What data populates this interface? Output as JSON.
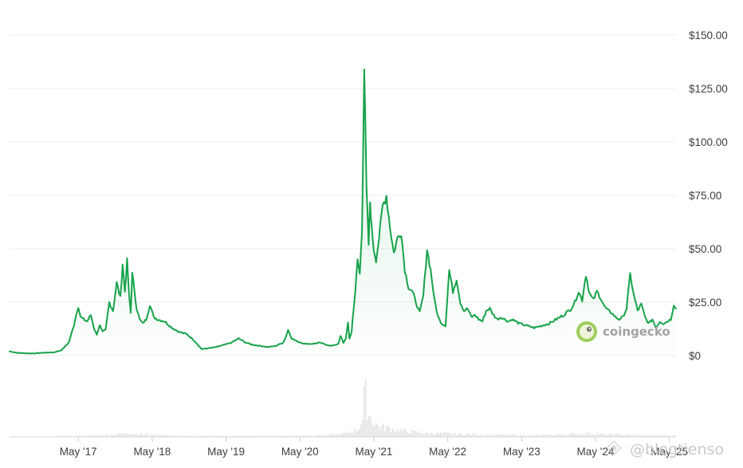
{
  "chart_data": {
    "type": "area",
    "title": "",
    "xlabel": "",
    "ylabel": "",
    "ylim": [
      0,
      150
    ],
    "grid": true,
    "line_color": "#16a34a",
    "y_ticks": [
      "$0",
      "$25.00",
      "$50.00",
      "$75.00",
      "$100.00",
      "$125.00",
      "$150.00"
    ],
    "y_tick_values": [
      0,
      25,
      50,
      75,
      100,
      125,
      150
    ],
    "x_ticks": [
      "May '17",
      "May '18",
      "May '19",
      "May '20",
      "May '21",
      "May '22",
      "May '23",
      "May '24",
      "May '25"
    ],
    "x_tick_values": [
      2017.33,
      2018.33,
      2019.33,
      2020.33,
      2021.33,
      2022.33,
      2023.33,
      2024.33,
      2025.33
    ],
    "xlim": [
      2016.4,
      2025.42
    ],
    "series": [
      {
        "name": "",
        "x": [
          2016.4,
          2016.5,
          2016.6,
          2016.7,
          2016.8,
          2016.9,
          2017.0,
          2017.1,
          2017.2,
          2017.27,
          2017.3,
          2017.33,
          2017.36,
          2017.4,
          2017.45,
          2017.5,
          2017.55,
          2017.58,
          2017.62,
          2017.66,
          2017.7,
          2017.75,
          2017.8,
          2017.85,
          2017.9,
          2017.93,
          2017.96,
          2017.99,
          2018.02,
          2018.04,
          2018.06,
          2018.09,
          2018.12,
          2018.16,
          2018.2,
          2018.25,
          2018.3,
          2018.35,
          2018.4,
          2018.5,
          2018.6,
          2018.7,
          2018.8,
          2018.9,
          2019.0,
          2019.1,
          2019.2,
          2019.3,
          2019.4,
          2019.5,
          2019.6,
          2019.7,
          2019.8,
          2019.9,
          2020.0,
          2020.1,
          2020.13,
          2020.17,
          2020.22,
          2020.3,
          2020.4,
          2020.5,
          2020.6,
          2020.7,
          2020.75,
          2020.8,
          2020.85,
          2020.88,
          2020.92,
          2020.95,
          2020.98,
          2021.0,
          2021.03,
          2021.05,
          2021.08,
          2021.11,
          2021.14,
          2021.17,
          2021.2,
          2021.23,
          2021.26,
          2021.28,
          2021.3,
          2021.33,
          2021.36,
          2021.4,
          2021.45,
          2021.5,
          2021.55,
          2021.6,
          2021.65,
          2021.7,
          2021.75,
          2021.8,
          2021.85,
          2021.9,
          2021.95,
          2022.0,
          2022.05,
          2022.1,
          2022.15,
          2022.2,
          2022.25,
          2022.3,
          2022.35,
          2022.4,
          2022.45,
          2022.5,
          2022.55,
          2022.6,
          2022.65,
          2022.7,
          2022.75,
          2022.8,
          2022.85,
          2022.9,
          2022.95,
          2023.0,
          2023.05,
          2023.1,
          2023.15,
          2023.2,
          2023.25,
          2023.3,
          2023.4,
          2023.5,
          2023.6,
          2023.7,
          2023.8,
          2023.9,
          2024.0,
          2024.05,
          2024.1,
          2024.15,
          2024.2,
          2024.25,
          2024.3,
          2024.35,
          2024.4,
          2024.45,
          2024.5,
          2024.55,
          2024.6,
          2024.65,
          2024.7,
          2024.75,
          2024.8,
          2024.85,
          2024.9,
          2024.95,
          2025.0,
          2025.05,
          2025.1,
          2025.15,
          2025.2,
          2025.25,
          2025.3,
          2025.35,
          2025.39,
          2025.42
        ],
        "values": [
          2.0,
          1.3,
          1.1,
          1.0,
          1.2,
          1.4,
          1.5,
          2.5,
          6.0,
          14.0,
          19.0,
          23.0,
          18.0,
          17.0,
          16.0,
          19.0,
          12.0,
          10.0,
          14.0,
          11.0,
          12.0,
          25.0,
          21.0,
          34.0,
          27.0,
          43.0,
          30.0,
          44.0,
          27.0,
          20.0,
          38.0,
          31.0,
          22.0,
          17.0,
          15.0,
          17.0,
          24.0,
          18.0,
          17.0,
          16.0,
          13.0,
          11.0,
          10.0,
          7.0,
          3.0,
          3.5,
          4.0,
          5.0,
          6.0,
          8.0,
          6.0,
          5.0,
          4.5,
          4.0,
          4.5,
          6.0,
          8.0,
          12.0,
          8.0,
          6.5,
          5.5,
          5.5,
          6.0,
          5.0,
          4.5,
          5.0,
          5.5,
          9.0,
          6.0,
          8.0,
          15.0,
          8.0,
          11.0,
          20.0,
          30.0,
          45.0,
          38.0,
          60.0,
          135.0,
          78.0,
          52.0,
          72.0,
          60.0,
          50.0,
          45.0,
          55.0,
          70.0,
          75.0,
          60.0,
          48.0,
          55.0,
          58.0,
          40.0,
          32.0,
          30.0,
          25.0,
          20.0,
          28.0,
          50.0,
          40.0,
          26.0,
          18.0,
          15.0,
          14.0,
          40.0,
          30.0,
          36.0,
          25.0,
          21.0,
          22.0,
          18.0,
          19.0,
          17.0,
          16.0,
          21.0,
          22.0,
          19.0,
          17.0,
          18.0,
          17.0,
          16.0,
          17.0,
          16.0,
          15.0,
          14.0,
          13.0,
          14.0,
          15.0,
          17.0,
          19.0,
          22.0,
          25.0,
          30.0,
          26.0,
          38.0,
          29.0,
          26.0,
          30.0,
          27.0,
          23.0,
          21.0,
          20.0,
          18.0,
          17.0,
          18.0,
          22.0,
          38.0,
          28.0,
          21.0,
          24.0,
          18.0,
          15.0,
          17.0,
          13.0,
          16.0,
          15.0,
          16.0,
          17.0,
          24.0,
          22.0
        ]
      }
    ],
    "volume": {
      "x": [
        2016.4,
        2016.8,
        2017.2,
        2017.6,
        2017.9,
        2018.0,
        2018.3,
        2018.8,
        2019.4,
        2020.0,
        2020.5,
        2020.85,
        2021.0,
        2021.1,
        2021.17,
        2021.2,
        2021.25,
        2021.35,
        2021.5,
        2021.7,
        2022.0,
        2022.4,
        2022.8,
        2023.5,
        2024.2,
        2024.6,
        2025.0,
        2025.42
      ],
      "values": [
        0.0,
        0.0,
        0.1,
        0.2,
        0.4,
        0.5,
        0.3,
        0.1,
        0.1,
        0.1,
        0.2,
        0.3,
        0.6,
        1.0,
        2.2,
        6.0,
        3.0,
        1.5,
        1.2,
        0.8,
        0.5,
        0.4,
        0.3,
        0.2,
        0.4,
        0.3,
        0.2,
        0.2
      ]
    }
  },
  "watermarks": {
    "logo_text": "coingecko",
    "overlay_text": "@blogtienso"
  }
}
